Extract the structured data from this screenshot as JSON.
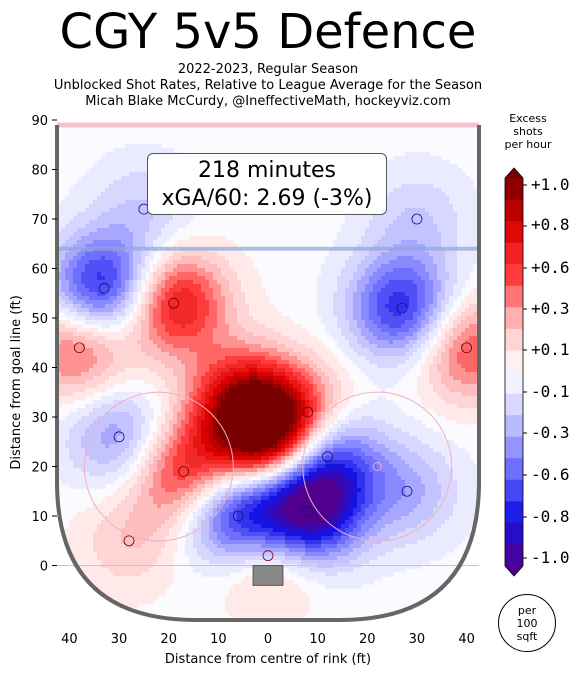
{
  "header": {
    "title": "CGY 5v5 Defence",
    "subtitle_lines": [
      "2022-2023, Regular Season",
      "Unblocked Shot Rates, Relative to League Average for the Season",
      "Micah Blake McCurdy, @IneffectiveMath, hockeyviz.com"
    ]
  },
  "annotation": {
    "line1": "218 minutes",
    "line2": "xGA/60: 2.69 (-3%)"
  },
  "colorbar": {
    "title_lines": [
      "Excess",
      "shots",
      "per hour"
    ],
    "tick_labels": [
      "+1.0",
      "+0.8",
      "+0.6",
      "+0.3",
      "+0.1",
      "-0.1",
      "-0.3",
      "-0.6",
      "-0.8",
      "-1.0"
    ]
  },
  "unit_badge": {
    "lines": [
      "per",
      "100",
      "sqft"
    ]
  },
  "chart_data": {
    "type": "heatmap",
    "title": "CGY 5v5 Defence",
    "xlabel": "Distance from centre of rink (ft)",
    "ylabel": "Distance from goal line (ft)",
    "xlim": [
      -42.5,
      42.5
    ],
    "ylim": [
      -11,
      90
    ],
    "x_ticks": [
      -40,
      -30,
      -20,
      -10,
      0,
      10,
      20,
      30,
      40
    ],
    "x_tick_labels": [
      "40",
      "30",
      "20",
      "10",
      "0",
      "10",
      "20",
      "30",
      "40"
    ],
    "y_ticks": [
      0,
      10,
      20,
      30,
      40,
      50,
      60,
      70,
      80,
      90
    ],
    "y_tick_labels": [
      "0",
      "10",
      "20",
      "30",
      "40",
      "50",
      "60",
      "70",
      "80",
      "90"
    ],
    "colorscale_range": [
      -1.0,
      1.0
    ],
    "hotspots": [
      {
        "x": 0,
        "y": 26,
        "value": 1.0
      },
      {
        "x": -5,
        "y": 33,
        "value": 0.7
      },
      {
        "x": -17,
        "y": 19,
        "value": 0.6
      },
      {
        "x": -19,
        "y": 53,
        "value": 0.7
      },
      {
        "x": -38,
        "y": 44,
        "value": 0.5
      },
      {
        "x": 40,
        "y": 44,
        "value": 0.5
      },
      {
        "x": 0,
        "y": 2,
        "value": 0.4
      },
      {
        "x": -28,
        "y": 5,
        "value": 0.2
      },
      {
        "x": 8,
        "y": 31,
        "value": 0.3
      },
      {
        "x": 8,
        "y": 11,
        "value": -1.0
      },
      {
        "x": -6,
        "y": 10,
        "value": -0.8
      },
      {
        "x": 12,
        "y": 22,
        "value": -0.6
      },
      {
        "x": -33,
        "y": 56,
        "value": -0.8
      },
      {
        "x": 27,
        "y": 52,
        "value": -0.7
      },
      {
        "x": -30,
        "y": 26,
        "value": -0.4
      },
      {
        "x": 28,
        "y": 15,
        "value": -0.3
      },
      {
        "x": -25,
        "y": 72,
        "value": -0.2
      },
      {
        "x": 30,
        "y": 70,
        "value": -0.2
      }
    ]
  }
}
